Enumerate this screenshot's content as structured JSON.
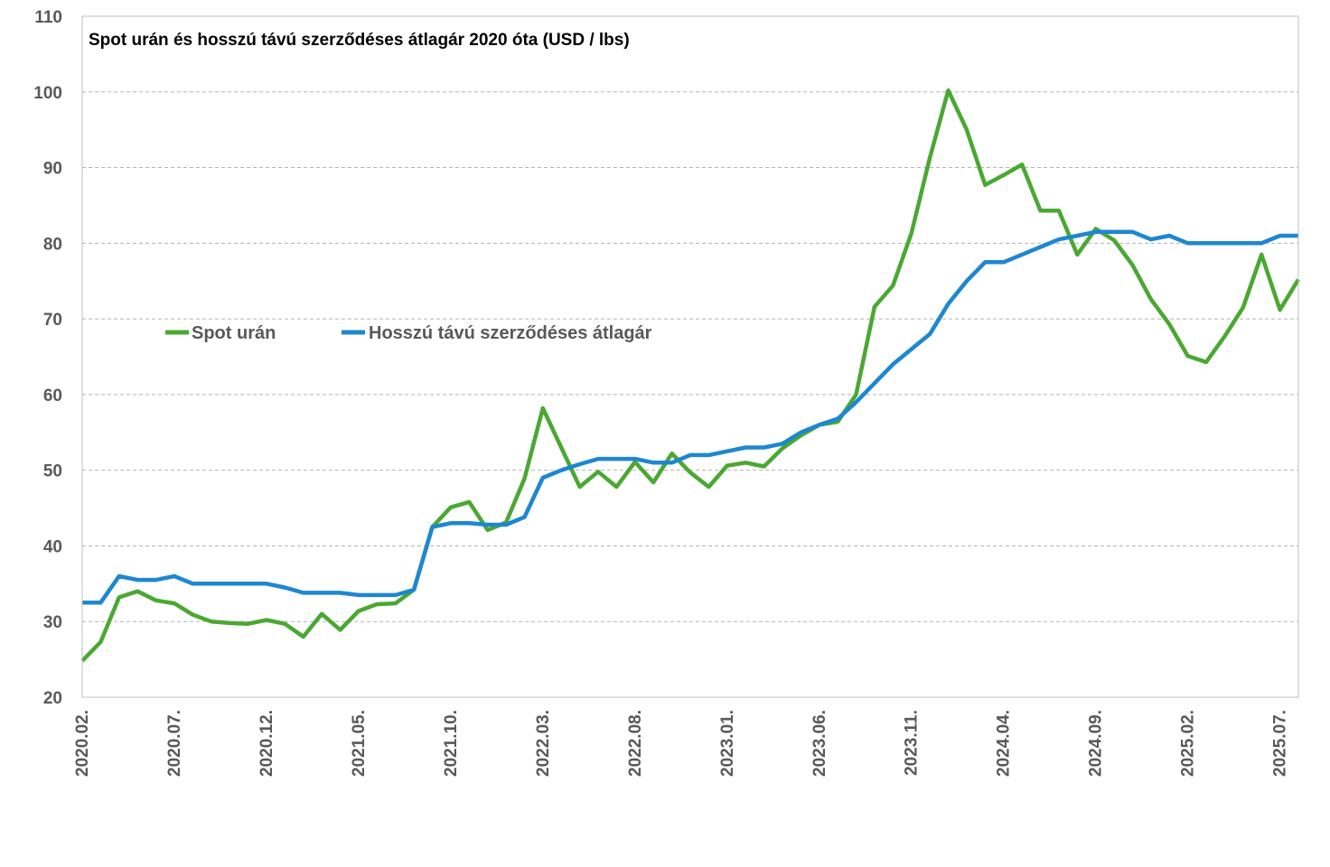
{
  "chart_data": {
    "type": "line",
    "title": "Spot urán és hosszú távú szerződéses átlagár 2020 óta (USD / lbs)",
    "xlabel": "",
    "ylabel": "",
    "ylim": [
      20,
      110
    ],
    "yticks": [
      20,
      30,
      40,
      50,
      60,
      70,
      80,
      90,
      100,
      110
    ],
    "grid": true,
    "legend_position": "upper-left",
    "x": [
      "2020.02.",
      "2020.03.",
      "2020.04.",
      "2020.05.",
      "2020.06.",
      "2020.07.",
      "2020.08.",
      "2020.09.",
      "2020.10.",
      "2020.11.",
      "2020.12.",
      "2021.01.",
      "2021.02.",
      "2021.03.",
      "2021.04.",
      "2021.05.",
      "2021.06.",
      "2021.07.",
      "2021.08.",
      "2021.09.",
      "2021.10.",
      "2021.11.",
      "2021.12.",
      "2022.01.",
      "2022.02.",
      "2022.03.",
      "2022.04.",
      "2022.05.",
      "2022.06.",
      "2022.07.",
      "2022.08.",
      "2022.09.",
      "2022.10.",
      "2022.11.",
      "2022.12.",
      "2023.01.",
      "2023.02.",
      "2023.03.",
      "2023.04.",
      "2023.05.",
      "2023.06.",
      "2023.07.",
      "2023.08.",
      "2023.09.",
      "2023.10.",
      "2023.11.",
      "2023.12.",
      "2024.01.",
      "2024.02.",
      "2024.03.",
      "2024.04.",
      "2024.05.",
      "2024.06.",
      "2024.07.",
      "2024.08.",
      "2024.09.",
      "2024.10.",
      "2024.11.",
      "2024.12.",
      "2025.01.",
      "2025.02.",
      "2025.03.",
      "2025.04.",
      "2025.05.",
      "2025.06.",
      "2025.07.",
      "2025.08."
    ],
    "xtick_labels": [
      "2020.02.",
      "2020.07.",
      "2020.12.",
      "2021.05.",
      "2021.10.",
      "2022.03.",
      "2022.08.",
      "2023.01.",
      "2023.06.",
      "2023.11.",
      "2024.04.",
      "2024.09.",
      "2025.02.",
      "2025.07."
    ],
    "series": [
      {
        "name": "Spot urán",
        "color": "#4aa832",
        "values": [
          24.8,
          27.3,
          33.2,
          34.0,
          32.8,
          32.4,
          30.9,
          30.0,
          29.8,
          29.7,
          30.2,
          29.7,
          28.0,
          31.0,
          28.9,
          31.4,
          32.3,
          32.4,
          34.2,
          42.5,
          45.1,
          45.8,
          42.1,
          43.1,
          48.9,
          58.2,
          53.0,
          47.8,
          49.8,
          47.8,
          51.1,
          48.4,
          52.2,
          49.7,
          47.8,
          50.6,
          51.0,
          50.5,
          52.9,
          54.6,
          56.0,
          56.4,
          60.0,
          71.6,
          74.4,
          81.3,
          91.3,
          100.2,
          95.0,
          87.7,
          89.0,
          90.4,
          84.3,
          84.3,
          78.5,
          81.9,
          80.4,
          77.1,
          72.6,
          69.3,
          65.1,
          64.3,
          67.7,
          71.5,
          78.5,
          71.2,
          75.2
        ]
      },
      {
        "name": "Hosszú távú szerződéses átlagár",
        "color": "#1d87d1",
        "values": [
          32.5,
          32.5,
          36.0,
          35.5,
          35.5,
          36.0,
          35.0,
          35.0,
          35.0,
          35.0,
          35.0,
          34.5,
          33.8,
          33.8,
          33.8,
          33.5,
          33.5,
          33.5,
          34.2,
          42.5,
          43.0,
          43.0,
          42.8,
          42.8,
          43.8,
          49.0,
          50.0,
          50.8,
          51.5,
          51.5,
          51.5,
          51.0,
          51.0,
          52.0,
          52.0,
          52.5,
          53.0,
          53.0,
          53.5,
          55.0,
          56.0,
          56.8,
          59.0,
          61.5,
          64.0,
          66.0,
          68.0,
          72.0,
          75.0,
          77.5,
          77.5,
          78.5,
          79.5,
          80.5,
          81.0,
          81.5,
          81.5,
          81.5,
          80.5,
          81.0,
          80.0,
          80.0,
          80.0,
          80.0,
          80.0,
          81.0,
          81.0
        ]
      }
    ]
  }
}
